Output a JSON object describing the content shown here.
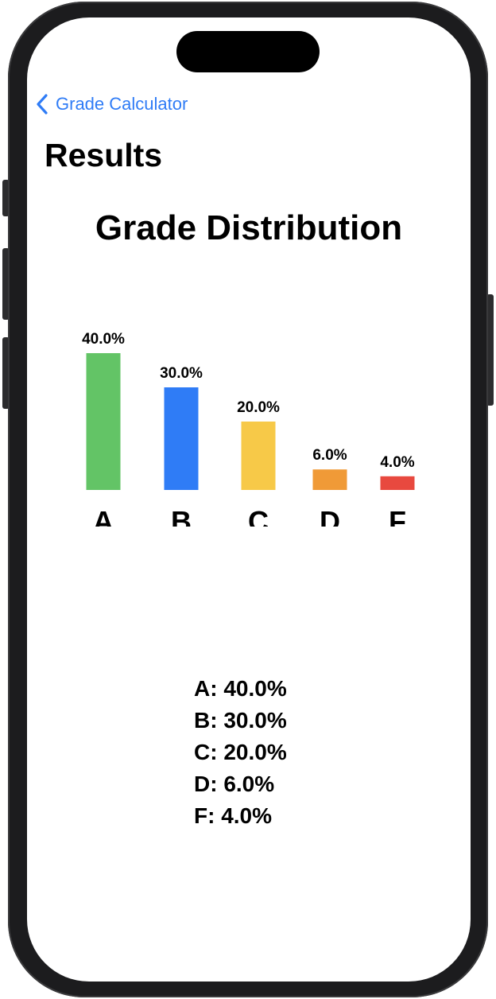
{
  "nav": {
    "back_label": "Grade Calculator"
  },
  "page": {
    "title": "Results"
  },
  "chart_title": "Grade Distribution",
  "chart_data": {
    "type": "bar",
    "title": "Grade Distribution",
    "categories": [
      "A",
      "B",
      "C",
      "D",
      "F"
    ],
    "values": [
      40.0,
      30.0,
      20.0,
      6.0,
      4.0
    ],
    "value_labels": [
      "40.0%",
      "30.0%",
      "20.0%",
      "6.0%",
      "4.0%"
    ],
    "colors": [
      "#63c466",
      "#2f7cf6",
      "#f7c948",
      "#f09a37",
      "#e8493f"
    ],
    "ylim": [
      0,
      40
    ],
    "grid": false,
    "xlabel": "",
    "ylabel": ""
  },
  "summary": [
    "A: 40.0%",
    "B: 30.0%",
    "C: 20.0%",
    "D: 6.0%",
    "F: 4.0%"
  ],
  "colors": {
    "accent": "#2f7cf6",
    "text": "#000000",
    "frame": "#1c1c1e"
  }
}
